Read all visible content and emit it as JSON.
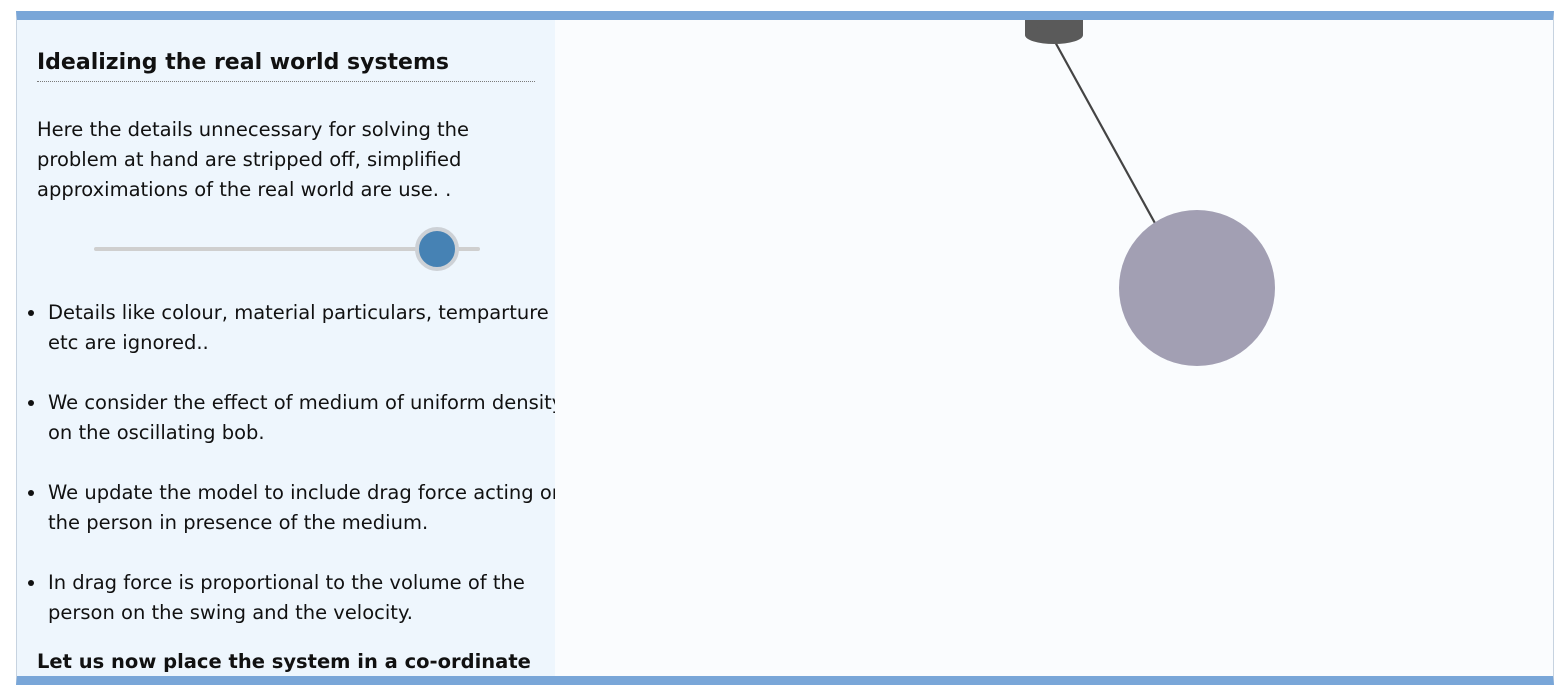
{
  "panel": {
    "title": "Idealizing the real world systems",
    "intro": "Here the details unnecessary for solving the problem at hand are stripped off, simplified approximations of the real world are use. .",
    "slider": {
      "value_fraction": 0.94
    },
    "points": [
      "Details like colour, material particulars, temparture etc are ignored..",
      "We consider the effect of medium of uniform density on the oscillating bob.",
      "We update the model to include drag force acting on the person in presence of the medium.",
      "In drag force is proportional to the volume of the person on the swing and the velocity."
    ],
    "footer": "Let us now place the system in a co-ordinate"
  },
  "scene": {
    "colors": {
      "accent": "#79a6d8",
      "slider_thumb": "#4682b4",
      "bob": "#a29fb3",
      "support": "#5a5a5a",
      "string": "#444444"
    }
  }
}
